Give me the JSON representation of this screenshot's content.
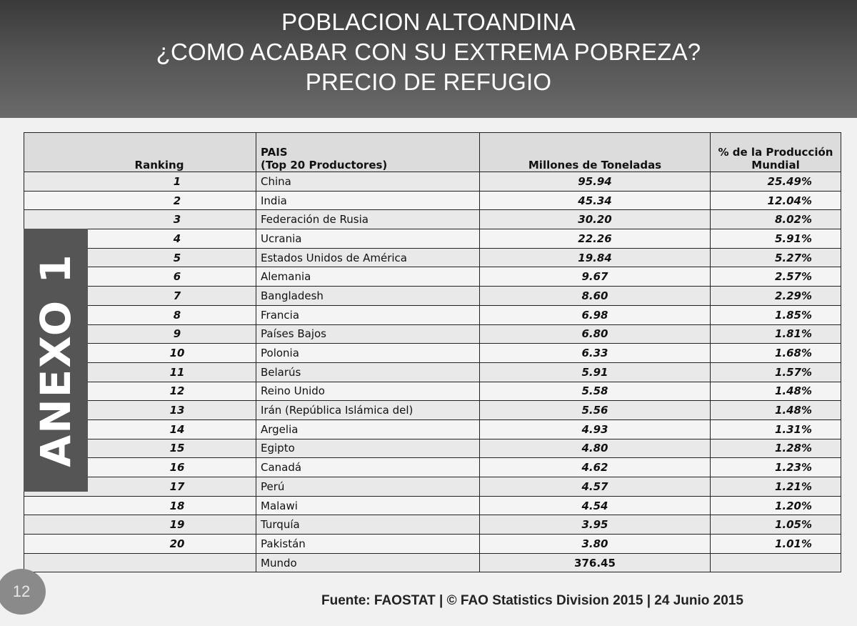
{
  "header": {
    "line1": "POBLACION ALTOANDINA",
    "line2": "¿COMO ACABAR CON SU EXTREMA POBREZA?",
    "line3": "PRECIO DE REFUGIO"
  },
  "sidebar_label": "ANEXO 1",
  "table": {
    "headers": {
      "ranking": "Ranking",
      "pais_line1": "PAIS",
      "pais_line2": "(Top 20 Productores)",
      "millones": "Millones de Toneladas",
      "pct_line1": "% de la Producción",
      "pct_line2": "Mundial"
    },
    "rows": [
      {
        "rank": "1",
        "country": "China",
        "value": "95.94",
        "pct": "25.49%"
      },
      {
        "rank": "2",
        "country": "India",
        "value": "45.34",
        "pct": "12.04%"
      },
      {
        "rank": "3",
        "country": "Federación de Rusia",
        "value": "30.20",
        "pct": "8.02%"
      },
      {
        "rank": "4",
        "country": "Ucrania",
        "value": "22.26",
        "pct": "5.91%"
      },
      {
        "rank": "5",
        "country": "Estados Unidos de América",
        "value": "19.84",
        "pct": "5.27%"
      },
      {
        "rank": "6",
        "country": "Alemania",
        "value": "9.67",
        "pct": "2.57%"
      },
      {
        "rank": "7",
        "country": "Bangladesh",
        "value": "8.60",
        "pct": "2.29%"
      },
      {
        "rank": "8",
        "country": "Francia",
        "value": "6.98",
        "pct": "1.85%"
      },
      {
        "rank": "9",
        "country": "Países Bajos",
        "value": "6.80",
        "pct": "1.81%"
      },
      {
        "rank": "10",
        "country": "Polonia",
        "value": "6.33",
        "pct": "1.68%"
      },
      {
        "rank": "11",
        "country": "Belarús",
        "value": "5.91",
        "pct": "1.57%"
      },
      {
        "rank": "12",
        "country": "Reino Unido",
        "value": "5.58",
        "pct": "1.48%"
      },
      {
        "rank": "13",
        "country": "Irán (República Islámica del)",
        "value": "5.56",
        "pct": "1.48%"
      },
      {
        "rank": "14",
        "country": "Argelia",
        "value": "4.93",
        "pct": "1.31%"
      },
      {
        "rank": "15",
        "country": "Egipto",
        "value": "4.80",
        "pct": "1.28%"
      },
      {
        "rank": "16",
        "country": "Canadá",
        "value": "4.62",
        "pct": "1.23%"
      },
      {
        "rank": "17",
        "country": "Perú",
        "value": "4.57",
        "pct": "1.21%"
      },
      {
        "rank": "18",
        "country": "Malawi",
        "value": "4.54",
        "pct": "1.20%"
      },
      {
        "rank": "19",
        "country": "Turquía",
        "value": "3.95",
        "pct": "1.05%"
      },
      {
        "rank": "20",
        "country": "Pakistán",
        "value": "3.80",
        "pct": "1.01%"
      }
    ],
    "total": {
      "country": "Mundo",
      "value": "376.45"
    }
  },
  "page_number": "12",
  "source": "Fuente: FAOSTAT | © FAO Statistics Division 2015 | 24 Junio 2015"
}
